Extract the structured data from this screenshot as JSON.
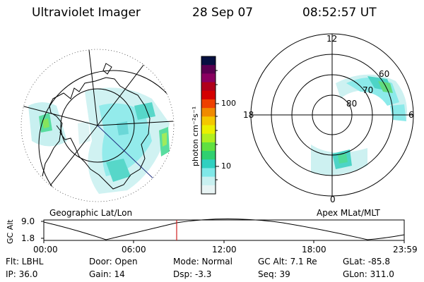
{
  "header": {
    "instrument": "Ultraviolet Imager",
    "date": "28 Sep 07",
    "time": "08:52:57 UT"
  },
  "left_panel": {
    "caption": "Geographic Lat/Lon"
  },
  "right_panel": {
    "caption": "Apex MLat/MLT",
    "mlt_labels": [
      "12",
      "18",
      "6",
      "0"
    ],
    "lat_labels": [
      "60",
      "70",
      "80"
    ]
  },
  "colorbar": {
    "label": "photon cm⁻²s⁻¹",
    "ticks": [
      "100",
      "10"
    ],
    "colors": [
      "#061040",
      "#5a0050",
      "#8a0060",
      "#b0001a",
      "#d40000",
      "#ee4000",
      "#f08a00",
      "#f4c800",
      "#eaf000",
      "#b0ee20",
      "#60e040",
      "#30d070",
      "#30d0c0",
      "#80e8e8",
      "#c8f0f0",
      "#e8f4f4"
    ]
  },
  "timeline": {
    "ylabel": "GC Alt",
    "ymax": "9.0",
    "ymin": "1.8",
    "ticks": [
      "00:00",
      "06:00",
      "12:00",
      "18:00",
      "23:59"
    ],
    "current_marker": "08:52:57"
  },
  "info": {
    "flt": "Flt: LBHL",
    "ip": "IP: 36.0",
    "door": "Door: Open",
    "gain": "Gain: 14",
    "mode": "Mode: Normal",
    "dsp": "Dsp:    -3.3",
    "gc_alt": "GC Alt: 7.1 Re",
    "seq": "Seq: 39",
    "glat": "GLat: -85.8",
    "glon": "GLon: 311.0"
  }
}
